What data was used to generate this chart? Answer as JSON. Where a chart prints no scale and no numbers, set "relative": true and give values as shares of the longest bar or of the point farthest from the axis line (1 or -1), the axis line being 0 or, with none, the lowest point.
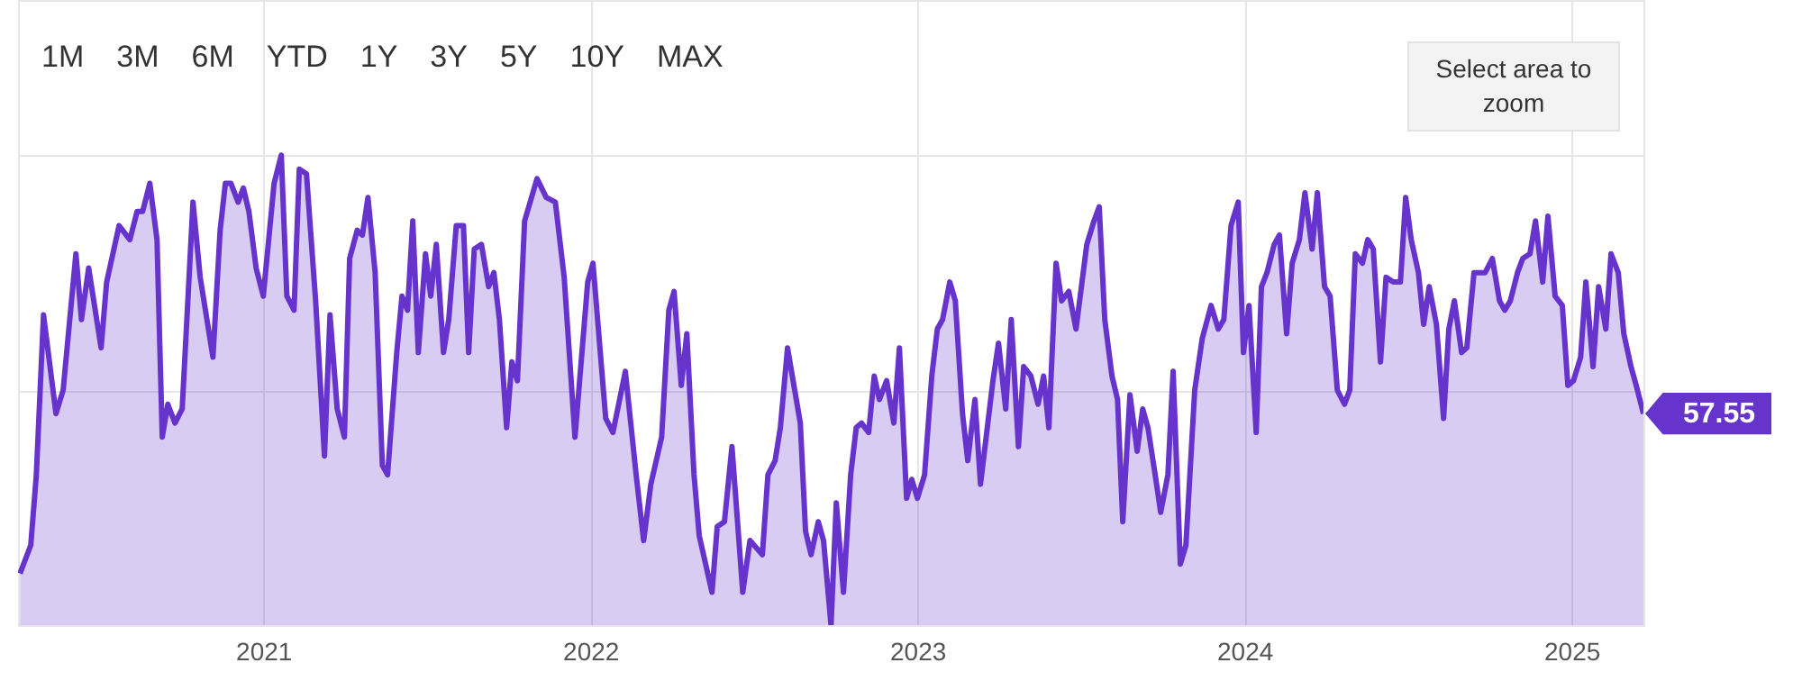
{
  "chart_data": {
    "type": "area",
    "relative": true,
    "grid": true,
    "xlim": [
      2020.25,
      2025.22
    ],
    "xticks": [
      2021,
      2022,
      2023,
      2024,
      2025
    ],
    "annotations": [
      "1M",
      "3M",
      "6M",
      "YTD",
      "1Y",
      "3Y",
      "5Y",
      "10Y",
      "MAX",
      "Select area to zoom",
      {
        "text": "57.55",
        "x": 2025.22,
        "y": 0.45
      }
    ],
    "x": [
      2020.256,
      2020.289,
      2020.306,
      2020.328,
      2020.366,
      2020.388,
      2020.427,
      2020.444,
      2020.466,
      2020.504,
      2020.521,
      2020.559,
      2020.592,
      2020.614,
      2020.631,
      2020.653,
      2020.675,
      2020.691,
      2020.708,
      2020.73,
      2020.752,
      2020.785,
      2020.807,
      2020.846,
      2020.868,
      2020.884,
      2020.901,
      2020.923,
      2020.939,
      2020.956,
      2020.978,
      2021.0,
      2021.033,
      2021.055,
      2021.072,
      2021.094,
      2021.11,
      2021.132,
      2021.16,
      2021.187,
      2021.204,
      2021.226,
      2021.248,
      2021.264,
      2021.287,
      2021.303,
      2021.32,
      2021.342,
      2021.364,
      2021.38,
      2021.408,
      2021.424,
      2021.441,
      2021.457,
      2021.474,
      2021.496,
      2021.512,
      2021.529,
      2021.551,
      2021.567,
      2021.59,
      2021.612,
      2021.628,
      2021.645,
      2021.667,
      2021.689,
      2021.705,
      2021.722,
      2021.744,
      2021.76,
      2021.777,
      2021.799,
      2021.837,
      2021.865,
      2021.893,
      2021.92,
      2021.953,
      2021.992,
      2022.008,
      2022.047,
      2022.069,
      2022.107,
      2022.14,
      2022.163,
      2022.185,
      2022.218,
      2022.24,
      2022.256,
      2022.278,
      2022.295,
      2022.317,
      2022.333,
      2022.372,
      2022.388,
      2022.41,
      2022.433,
      2022.466,
      2022.488,
      2022.526,
      2022.543,
      2022.565,
      2022.581,
      2022.603,
      2022.62,
      2022.642,
      2022.658,
      2022.675,
      2022.697,
      2022.713,
      2022.736,
      2022.752,
      2022.774,
      2022.796,
      2022.813,
      2022.829,
      2022.851,
      2022.868,
      2022.884,
      2022.906,
      2022.928,
      2022.945,
      2022.967,
      2022.983,
      2023.0,
      2023.022,
      2023.044,
      2023.061,
      2023.077,
      2023.099,
      2023.116,
      2023.138,
      2023.154,
      2023.176,
      2023.193,
      2023.231,
      2023.248,
      2023.27,
      2023.287,
      2023.309,
      2023.325,
      2023.347,
      2023.369,
      2023.386,
      2023.402,
      2023.424,
      2023.441,
      2023.463,
      2023.485,
      2023.518,
      2023.54,
      2023.556,
      2023.573,
      2023.595,
      2023.612,
      2023.628,
      2023.65,
      2023.672,
      2023.689,
      2023.705,
      2023.727,
      2023.744,
      2023.766,
      2023.782,
      2023.804,
      2023.821,
      2023.848,
      2023.871,
      2023.898,
      2023.92,
      2023.937,
      2023.959,
      2023.981,
      2023.997,
      2024.014,
      2024.036,
      2024.052,
      2024.069,
      2024.091,
      2024.107,
      2024.129,
      2024.146,
      2024.168,
      2024.185,
      2024.207,
      2024.223,
      2024.245,
      2024.262,
      2024.284,
      2024.306,
      2024.322,
      2024.339,
      2024.361,
      2024.377,
      2024.394,
      2024.416,
      2024.433,
      2024.455,
      2024.477,
      2024.493,
      2024.51,
      2024.532,
      2024.548,
      2024.565,
      2024.587,
      2024.609,
      2024.625,
      2024.642,
      2024.664,
      2024.68,
      2024.702,
      2024.719,
      2024.736,
      2024.758,
      2024.78,
      2024.796,
      2024.813,
      2024.835,
      2024.851,
      2024.873,
      2024.89,
      2024.912,
      2024.928,
      2024.95,
      2024.972,
      2024.989,
      2025.006,
      2025.028,
      2025.044,
      2025.066,
      2025.083,
      2025.105,
      2025.121,
      2025.143,
      2025.16,
      2025.182,
      2025.198,
      2025.22
    ],
    "series": [
      {
        "color": "#6633cc",
        "values": [
          0.11,
          0.17,
          0.32,
          0.66,
          0.45,
          0.5,
          0.79,
          0.65,
          0.76,
          0.59,
          0.73,
          0.85,
          0.82,
          0.88,
          0.88,
          0.94,
          0.82,
          0.4,
          0.47,
          0.43,
          0.46,
          0.9,
          0.74,
          0.57,
          0.84,
          0.94,
          0.94,
          0.9,
          0.93,
          0.88,
          0.76,
          0.7,
          0.94,
          1,
          0.7,
          0.67,
          0.97,
          0.96,
          0.69,
          0.36,
          0.66,
          0.46,
          0.4,
          0.78,
          0.84,
          0.83,
          0.91,
          0.75,
          0.34,
          0.32,
          0.58,
          0.7,
          0.67,
          0.86,
          0.58,
          0.79,
          0.7,
          0.81,
          0.58,
          0.65,
          0.85,
          0.85,
          0.58,
          0.8,
          0.81,
          0.72,
          0.75,
          0.65,
          0.42,
          0.56,
          0.52,
          0.86,
          0.95,
          0.91,
          0.9,
          0.74,
          0.4,
          0.73,
          0.77,
          0.44,
          0.41,
          0.54,
          0.32,
          0.18,
          0.3,
          0.4,
          0.67,
          0.71,
          0.51,
          0.62,
          0.32,
          0.19,
          0.07,
          0.21,
          0.22,
          0.38,
          0.07,
          0.18,
          0.15,
          0.32,
          0.35,
          0.42,
          0.59,
          0.52,
          0.43,
          0.2,
          0.15,
          0.22,
          0.18,
          0,
          0.26,
          0.07,
          0.32,
          0.42,
          0.43,
          0.41,
          0.53,
          0.48,
          0.52,
          0.43,
          0.59,
          0.27,
          0.31,
          0.27,
          0.32,
          0.53,
          0.63,
          0.65,
          0.73,
          0.69,
          0.45,
          0.35,
          0.48,
          0.3,
          0.52,
          0.6,
          0.46,
          0.65,
          0.38,
          0.55,
          0.53,
          0.47,
          0.53,
          0.42,
          0.77,
          0.69,
          0.71,
          0.63,
          0.81,
          0.86,
          0.89,
          0.65,
          0.53,
          0.48,
          0.22,
          0.49,
          0.37,
          0.46,
          0.42,
          0.32,
          0.24,
          0.32,
          0.54,
          0.13,
          0.17,
          0.5,
          0.61,
          0.68,
          0.63,
          0.65,
          0.85,
          0.9,
          0.58,
          0.68,
          0.41,
          0.72,
          0.75,
          0.81,
          0.83,
          0.62,
          0.77,
          0.82,
          0.92,
          0.8,
          0.92,
          0.72,
          0.7,
          0.5,
          0.47,
          0.5,
          0.79,
          0.77,
          0.82,
          0.8,
          0.56,
          0.74,
          0.73,
          0.73,
          0.91,
          0.82,
          0.75,
          0.64,
          0.72,
          0.64,
          0.44,
          0.63,
          0.69,
          0.58,
          0.59,
          0.75,
          0.75,
          0.75,
          0.78,
          0.69,
          0.67,
          0.69,
          0.75,
          0.78,
          0.79,
          0.86,
          0.73,
          0.87,
          0.7,
          0.68,
          0.51,
          0.52,
          0.57,
          0.73,
          0.55,
          0.72,
          0.63,
          0.79,
          0.75,
          0.62,
          0.55,
          0.51,
          0.45
        ]
      }
    ]
  }
}
